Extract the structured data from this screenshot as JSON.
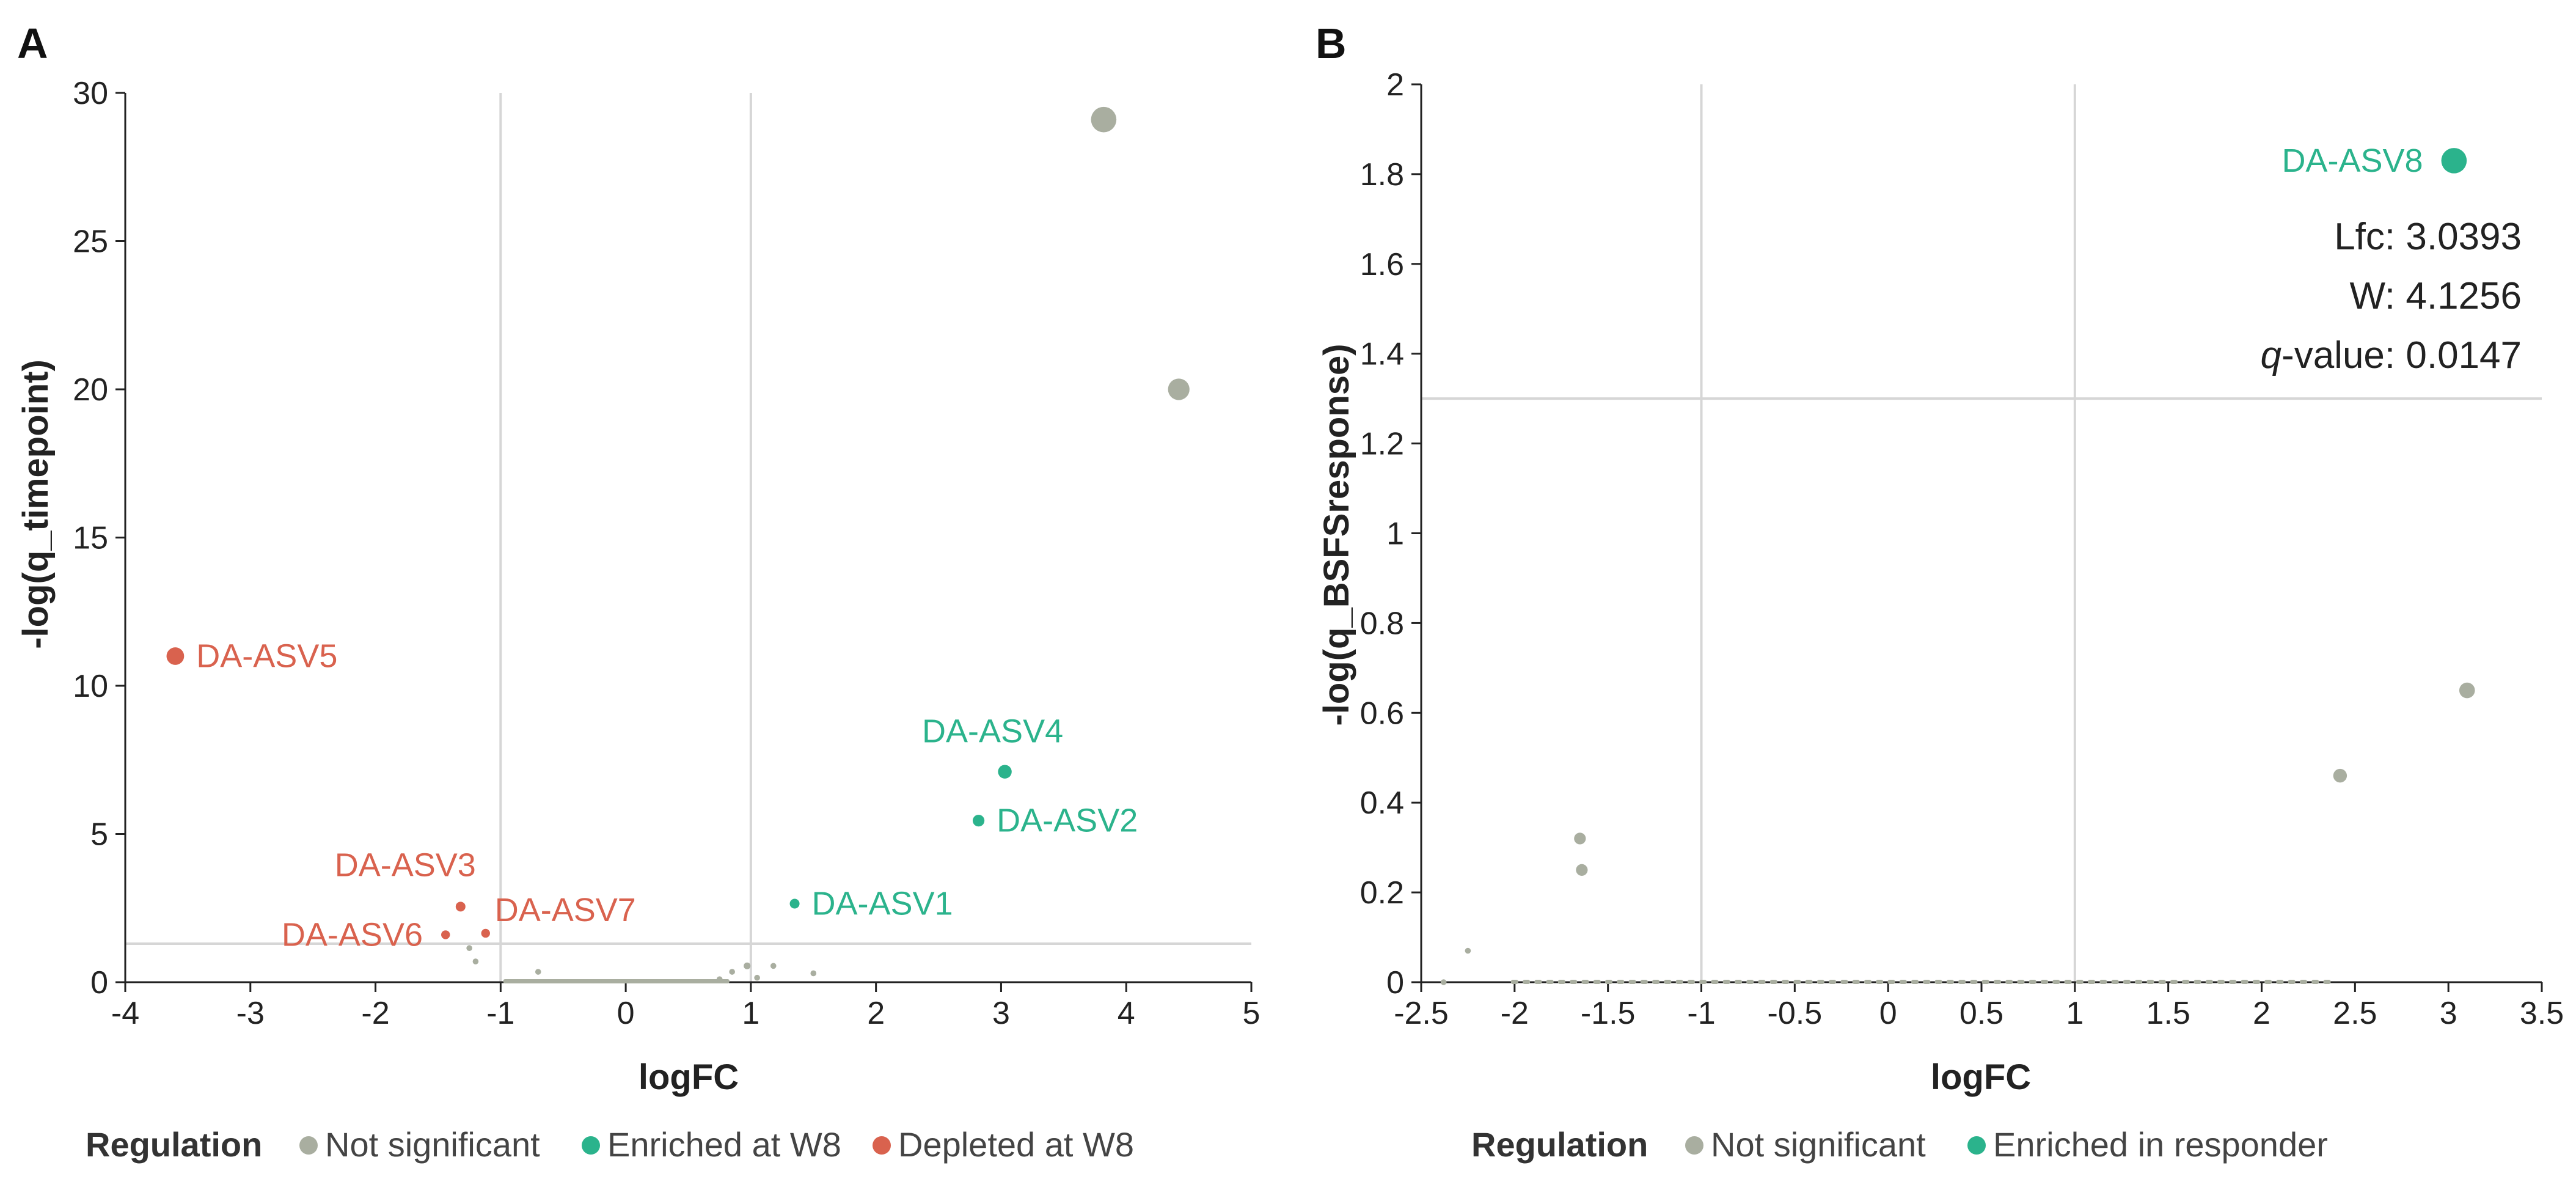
{
  "colors": {
    "not_significant": "#a9aea0",
    "enriched": "#2bb38c",
    "depleted": "#d9624e",
    "grid": "#d6d6d6",
    "axis": "#222222"
  },
  "chart_data": [
    {
      "id": "A",
      "type": "scatter",
      "panel_label": "A",
      "xlabel": "logFC",
      "ylabel": "-log(q_timepoint)",
      "xlim": [
        -4,
        5
      ],
      "ylim": [
        0,
        30
      ],
      "xticks": [
        -4,
        -3,
        -2,
        -1,
        0,
        1,
        2,
        3,
        4,
        5
      ],
      "xtick_labels": [
        "-4",
        "-3",
        "-2",
        "-1",
        "0",
        "1",
        "2",
        "3",
        "4",
        "5"
      ],
      "yticks": [
        0,
        5,
        10,
        15,
        20,
        25,
        30
      ],
      "ytick_labels": [
        "0",
        "5",
        "10",
        "15",
        "20",
        "25",
        "30"
      ],
      "vlines": [
        -1,
        1
      ],
      "hlines": [
        1.3
      ],
      "legend": {
        "title": "Regulation",
        "entries": [
          {
            "label": "Not significant",
            "color_key": "not_significant"
          },
          {
            "label": "Enriched at W8",
            "color_key": "enriched"
          },
          {
            "label": "Depleted at W8",
            "color_key": "depleted"
          }
        ]
      },
      "points": [
        {
          "x": 3.82,
          "y": 29.1,
          "r": 13,
          "group": "not_significant"
        },
        {
          "x": 4.42,
          "y": 20.0,
          "r": 11,
          "group": "not_significant"
        },
        {
          "x": -3.6,
          "y": 11.0,
          "r": 9,
          "group": "depleted",
          "label": "DA-ASV5",
          "label_pos": "right"
        },
        {
          "x": 3.03,
          "y": 7.1,
          "r": 7,
          "group": "enriched",
          "label": "DA-ASV4",
          "label_pos": "above"
        },
        {
          "x": 2.82,
          "y": 5.45,
          "r": 6,
          "group": "enriched",
          "label": "DA-ASV2",
          "label_pos": "right"
        },
        {
          "x": 1.35,
          "y": 2.65,
          "r": 5,
          "group": "enriched",
          "label": "DA-ASV1",
          "label_pos": "right"
        },
        {
          "x": -1.32,
          "y": 2.55,
          "r": 5,
          "group": "depleted",
          "label": "DA-ASV3",
          "label_pos": "above-left"
        },
        {
          "x": -1.44,
          "y": 1.6,
          "r": 4.5,
          "group": "depleted",
          "label": "DA-ASV6",
          "label_pos": "left"
        },
        {
          "x": -1.12,
          "y": 1.65,
          "r": 4.5,
          "group": "depleted",
          "label": "DA-ASV7",
          "label_pos": "above-right"
        },
        {
          "x": -1.25,
          "y": 1.15,
          "r": 3,
          "group": "not_significant"
        },
        {
          "x": -1.2,
          "y": 0.7,
          "r": 3,
          "group": "not_significant"
        },
        {
          "x": -0.7,
          "y": 0.35,
          "r": 3,
          "group": "not_significant"
        },
        {
          "x": 0.85,
          "y": 0.35,
          "r": 3,
          "group": "not_significant"
        },
        {
          "x": 0.97,
          "y": 0.55,
          "r": 3.5,
          "group": "not_significant"
        },
        {
          "x": 1.18,
          "y": 0.55,
          "r": 3,
          "group": "not_significant"
        },
        {
          "x": 1.5,
          "y": 0.3,
          "r": 3,
          "group": "not_significant"
        },
        {
          "x": 0.75,
          "y": 0.1,
          "r": 3,
          "group": "not_significant"
        },
        {
          "x": 1.05,
          "y": 0.15,
          "r": 3,
          "group": "not_significant"
        }
      ],
      "baseline_band": {
        "x_from": -0.95,
        "x_to": 0.8,
        "y": 0.02
      }
    },
    {
      "id": "B",
      "type": "scatter",
      "panel_label": "B",
      "xlabel": "logFC",
      "ylabel": "-log(q_BSFSresponse)",
      "xlim": [
        -2.5,
        3.5
      ],
      "ylim": [
        0,
        2
      ],
      "xticks": [
        -2.5,
        -2,
        -1.5,
        -1,
        -0.5,
        0,
        0.5,
        1,
        1.5,
        2,
        2.5,
        3,
        3.5
      ],
      "xtick_labels": [
        "-2.5",
        "-2",
        "-1.5",
        "-1",
        "-0.5",
        "0",
        "0.5",
        "1",
        "1.5",
        "2",
        "2.5",
        "3",
        "3.5"
      ],
      "yticks": [
        0,
        0.2,
        0.4,
        0.6,
        0.8,
        1,
        1.2,
        1.4,
        1.6,
        1.8,
        2
      ],
      "ytick_labels": [
        "0",
        "0.2",
        "0.4",
        "0.6",
        "0.8",
        "1",
        "1.2",
        "1.4",
        "1.6",
        "1.8",
        "2"
      ],
      "vlines": [
        -1,
        1
      ],
      "hlines": [
        1.3
      ],
      "legend": {
        "title": "Regulation",
        "entries": [
          {
            "label": "Not significant",
            "color_key": "not_significant"
          },
          {
            "label": "Enriched in responder",
            "color_key": "enriched"
          }
        ]
      },
      "points": [
        {
          "x": 3.03,
          "y": 1.83,
          "r": 13,
          "group": "enriched",
          "label": "DA-ASV8",
          "label_pos": "left"
        },
        {
          "x": 3.1,
          "y": 0.65,
          "r": 8,
          "group": "not_significant"
        },
        {
          "x": 2.42,
          "y": 0.46,
          "r": 7,
          "group": "not_significant"
        },
        {
          "x": -1.65,
          "y": 0.32,
          "r": 6,
          "group": "not_significant"
        },
        {
          "x": -1.64,
          "y": 0.25,
          "r": 6,
          "group": "not_significant"
        },
        {
          "x": -2.25,
          "y": 0.07,
          "r": 3,
          "group": "not_significant"
        },
        {
          "x": -2.38,
          "y": 0.0,
          "r": 3,
          "group": "not_significant"
        }
      ],
      "baseline_band": {
        "x_from": -2.0,
        "x_to": 2.35,
        "y": 0.0
      },
      "annotation": {
        "lfc": "Lfc: 3.0393",
        "w": "W: 4.1256",
        "q_italic": "q",
        "q_rest": "-value: 0.0147"
      }
    }
  ]
}
